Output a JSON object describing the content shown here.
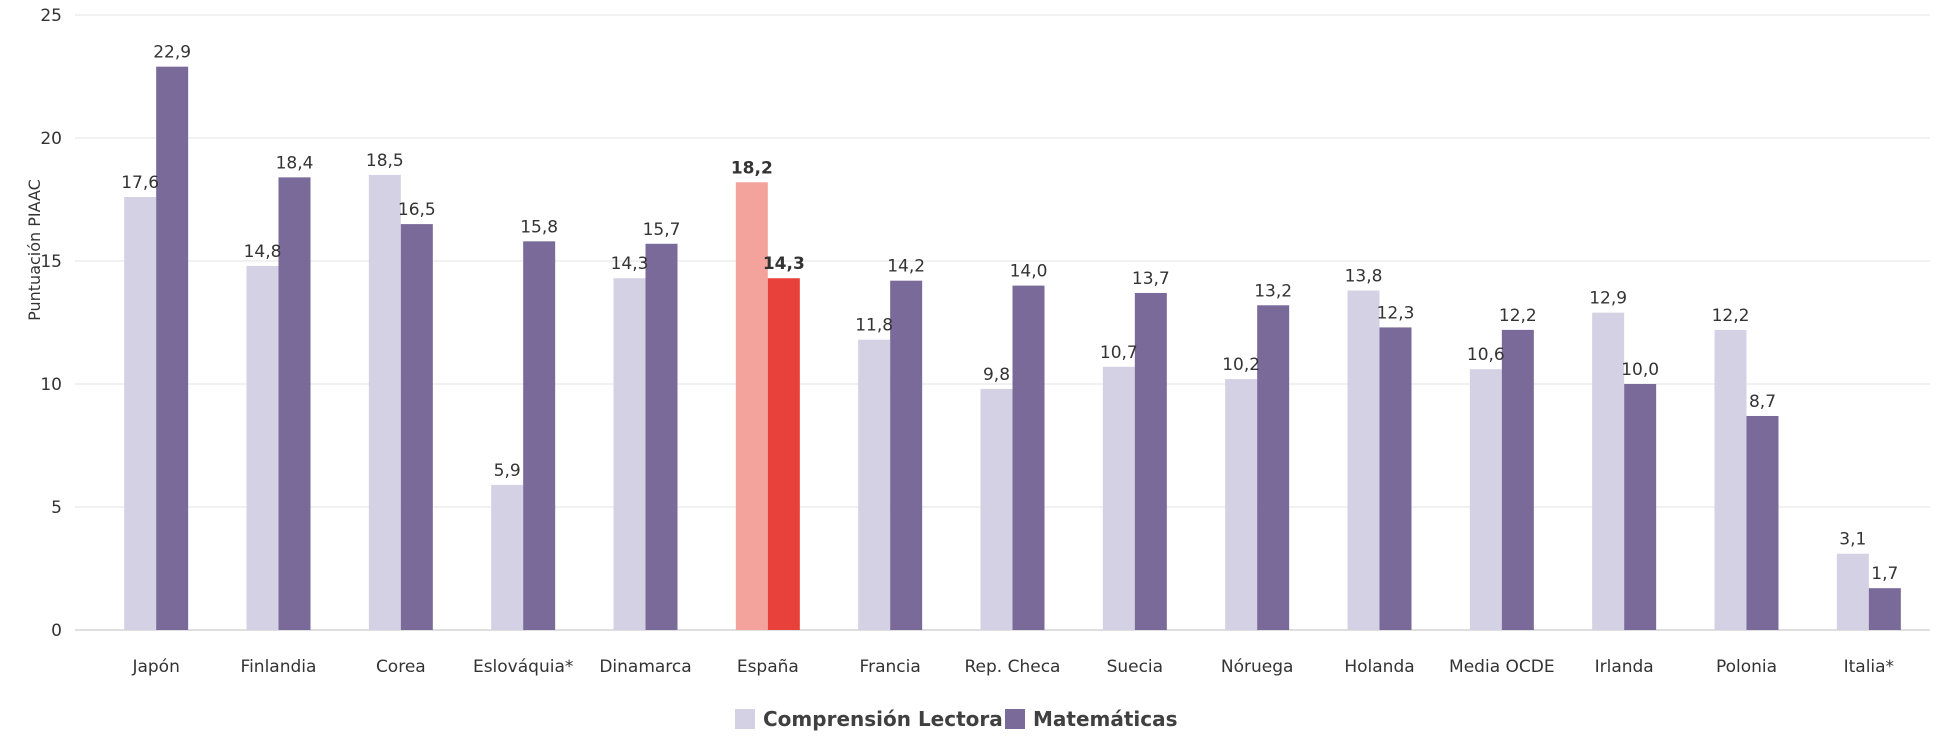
{
  "chart_data": {
    "type": "bar",
    "ylabel": "Puntuación PIAAC",
    "ylim": [
      0,
      25
    ],
    "yticks": [
      "0",
      "5",
      "10",
      "15",
      "20",
      "25"
    ],
    "grid": true,
    "legend_position": "bottom",
    "categories": [
      "Japón",
      "Finlandia",
      "Corea",
      "Eslováquia*",
      "Dinamarca",
      "España",
      "Francia",
      "Rep. Checa",
      "Suecia",
      "Nóruega",
      "Holanda",
      "Media OCDE",
      "Irlanda",
      "Polonia",
      "Italia*"
    ],
    "series": [
      {
        "name": "Comprensión Lectora",
        "color": "#d4d1e4",
        "values": [
          17.6,
          14.8,
          18.5,
          5.9,
          14.3,
          18.2,
          11.8,
          9.8,
          10.7,
          10.2,
          13.8,
          10.6,
          12.9,
          12.2,
          3.1
        ],
        "labels": [
          "17,6",
          "14,8",
          "18,5",
          "5,9",
          "14,3",
          "18,2",
          "11,8",
          "9,8",
          "10,7",
          "10,2",
          "13,8",
          "10,6",
          "12,9",
          "12,2",
          "3,1"
        ]
      },
      {
        "name": "Matemáticas",
        "color": "#7a6a9a",
        "values": [
          22.9,
          18.4,
          16.5,
          15.8,
          15.7,
          14.3,
          14.2,
          14.0,
          13.7,
          13.2,
          12.3,
          12.2,
          10.0,
          8.7,
          1.7
        ],
        "labels": [
          "22,9",
          "18,4",
          "16,5",
          "15,8",
          "15,7",
          "14,3",
          "14,2",
          "14,0",
          "13,7",
          "13,2",
          "12,3",
          "12,2",
          "10,0",
          "8,7",
          "1,7"
        ]
      }
    ],
    "highlight": {
      "category": "España",
      "colors": [
        "#f4a39c",
        "#e8403a"
      ]
    }
  }
}
